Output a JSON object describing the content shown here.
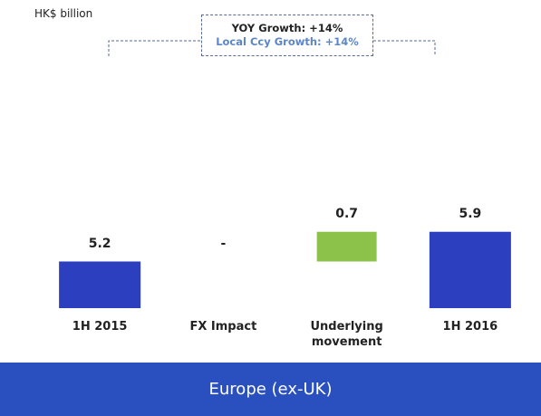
{
  "chart_data": {
    "type": "waterfall",
    "unit_label": "HK$ billion",
    "callout": [
      "YOY Growth: +14%",
      "Local Ccy Growth: +14%"
    ],
    "footer": "Europe (ex-UK)",
    "categories": [
      "1H 2015",
      "FX Impact",
      "Underlying movement",
      "1H 2016"
    ],
    "measure": [
      "total",
      "relative",
      "relative",
      "total"
    ],
    "values": [
      5.2,
      0,
      0.7,
      5.9
    ],
    "value_labels": [
      "5.2",
      "-",
      "0.7",
      "5.9"
    ],
    "total_color": "#2b3fbf",
    "increase_color": "#8dc24a",
    "ylim": [
      4.1,
      8.8
    ]
  }
}
